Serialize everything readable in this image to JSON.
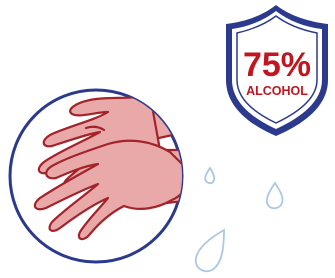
{
  "badge": {
    "percent": "75%",
    "label": "ALCOHOL"
  }
}
